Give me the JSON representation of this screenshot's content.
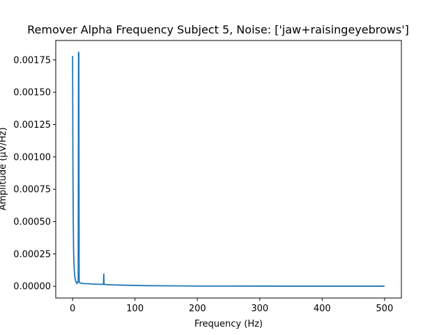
{
  "chart_data": {
    "type": "line",
    "title": "Remover Alpha Frequency Subject 5, Noise: ['jaw+raisingeyebrows']",
    "xlabel": "Frequency (Hz)",
    "ylabel": "Amplitude (µV/Hz)",
    "xlim": [
      -27,
      527
    ],
    "ylim": [
      -9.05e-05,
      0.0019
    ],
    "x_ticks": [
      0,
      100,
      200,
      300,
      400,
      500
    ],
    "x_tick_labels": [
      "0",
      "100",
      "200",
      "300",
      "400",
      "500"
    ],
    "y_ticks": [
      0,
      0.00025,
      0.0005,
      0.00075,
      0.001,
      0.00125,
      0.0015,
      0.00175
    ],
    "y_tick_labels": [
      "0.00000",
      "0.00025",
      "0.00050",
      "0.00075",
      "0.00100",
      "0.00125",
      "0.00150",
      "0.00175"
    ],
    "grid": false,
    "color": "#1f77b4",
    "series": [
      {
        "name": "",
        "x": [
          0,
          0.5,
          1,
          1.5,
          2,
          2.5,
          3,
          4,
          5,
          6,
          7,
          8,
          9,
          9.5,
          10,
          10.5,
          11,
          12,
          14,
          16,
          20,
          25,
          30,
          40,
          49.5,
          50,
          50.5,
          55,
          60,
          70,
          80,
          100,
          120,
          150,
          200,
          250,
          300,
          350,
          400,
          450,
          500
        ],
        "y": [
          0.00178,
          0.00095,
          0.00055,
          0.0003,
          0.0002,
          0.00015,
          0.0001,
          6e-05,
          4e-05,
          3e-05,
          2e-05,
          3e-05,
          4e-05,
          0.00181,
          0.0018,
          3e-05,
          3e-05,
          2.5e-05,
          2.5e-05,
          2.2e-05,
          2e-05,
          2e-05,
          1.8e-05,
          1.6e-05,
          1.5e-05,
          9.5e-05,
          1.5e-05,
          1.3e-05,
          1.2e-05,
          1e-05,
          9e-06,
          7e-06,
          5e-06,
          4e-06,
          2e-06,
          2e-06,
          1.5e-06,
          1e-06,
          1e-06,
          1e-06,
          1e-06
        ]
      }
    ]
  }
}
